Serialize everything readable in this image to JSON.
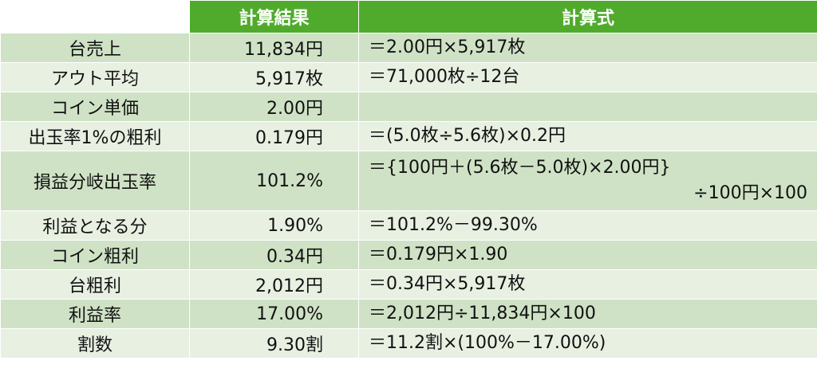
{
  "header": {
    "result": "計算結果",
    "formula": "計算式"
  },
  "rows": [
    {
      "label": "台売上",
      "result": "11,834円",
      "formula": "＝2.00円×5,917枚"
    },
    {
      "label": "アウト平均",
      "result": "5,917枚",
      "formula": "＝71,000枚÷12台"
    },
    {
      "label": "コイン単価",
      "result": "2.00円",
      "formula": ""
    },
    {
      "label": "出玉率1%の粗利",
      "result": "0.179円",
      "formula": "＝(5.0枚÷5.6枚)×0.2円"
    },
    {
      "label": "損益分岐出玉率",
      "result": "101.2%",
      "formula": "＝{100円＋(5.6枚－5.0枚)×2.00円}",
      "formula2": "÷100円×100"
    },
    {
      "label": "利益となる分",
      "result": "1.90%",
      "formula": "＝101.2%－99.30%"
    },
    {
      "label": "コイン粗利",
      "result": "0.34円",
      "formula": "＝0.179円×1.90"
    },
    {
      "label": "台粗利",
      "result": "2,012円",
      "formula": "＝0.34円×5,917枚"
    },
    {
      "label": "利益率",
      "result": "17.00%",
      "formula": "＝2,012円÷11,834円×100"
    },
    {
      "label": "割数",
      "result": "9.30割",
      "formula": "＝11.2割×(100%－17.00%)"
    }
  ]
}
